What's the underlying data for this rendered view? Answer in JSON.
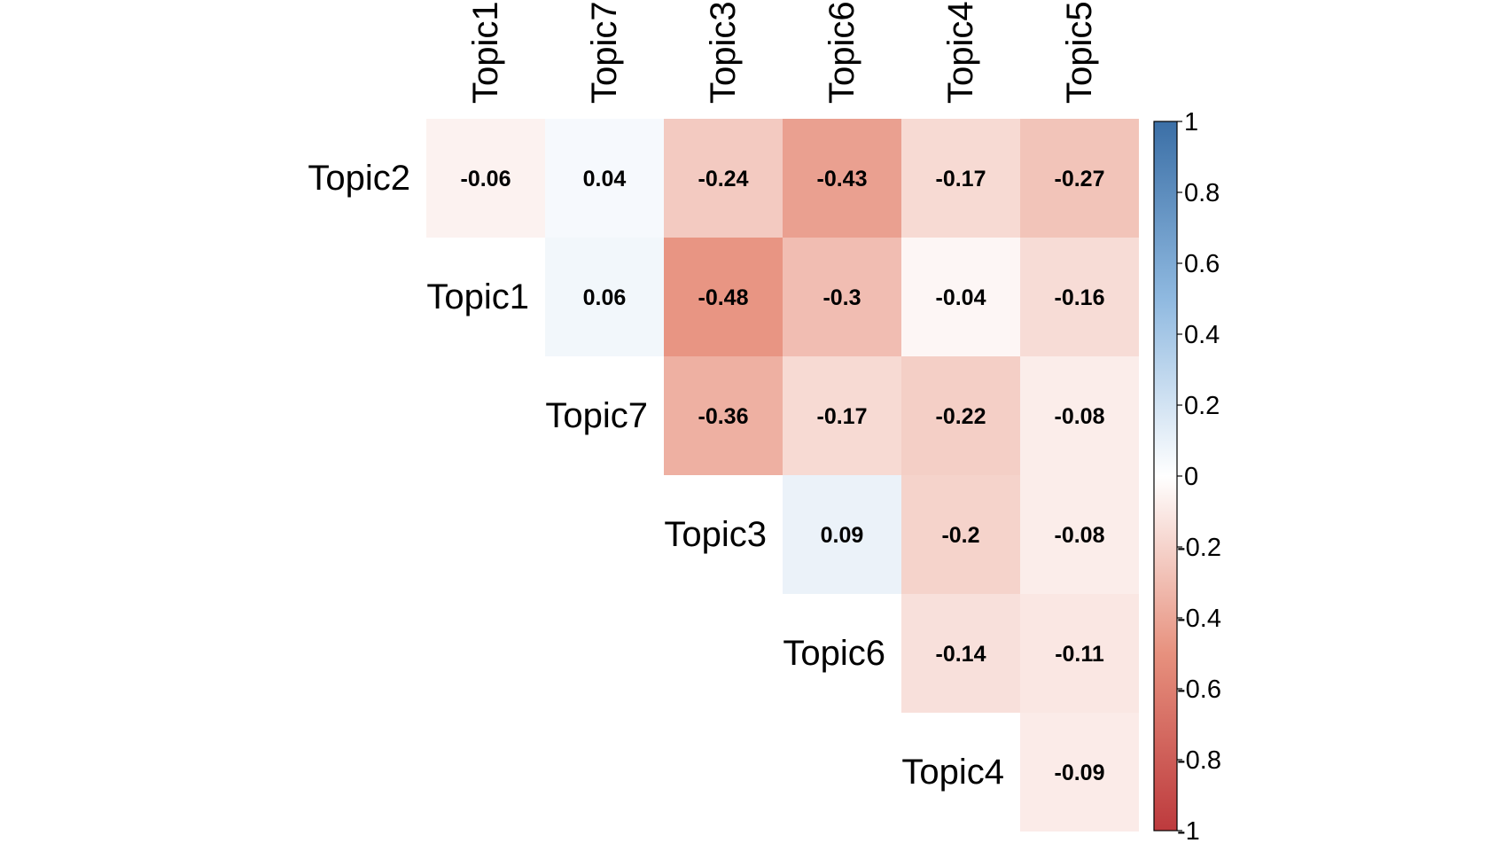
{
  "chart_data": {
    "type": "heatmap",
    "title": "",
    "column_labels": [
      "Topic1",
      "Topic7",
      "Topic3",
      "Topic6",
      "Topic4",
      "Topic5"
    ],
    "row_labels": [
      "Topic2",
      "Topic1",
      "Topic7",
      "Topic3",
      "Topic6",
      "Topic4"
    ],
    "values": [
      [
        -0.06,
        0.04,
        -0.24,
        -0.43,
        -0.17,
        -0.27
      ],
      [
        null,
        0.06,
        -0.48,
        -0.3,
        -0.04,
        -0.16
      ],
      [
        null,
        null,
        -0.36,
        -0.17,
        -0.22,
        -0.08
      ],
      [
        null,
        null,
        null,
        0.09,
        -0.2,
        -0.08
      ],
      [
        null,
        null,
        null,
        null,
        -0.14,
        -0.11
      ],
      [
        null,
        null,
        null,
        null,
        null,
        -0.09
      ]
    ],
    "value_labels": [
      [
        "-0.06",
        "0.04",
        "-0.24",
        "-0.43",
        "-0.17",
        "-0.27"
      ],
      [
        null,
        "0.06",
        "-0.48",
        "-0.3",
        "-0.04",
        "-0.16"
      ],
      [
        null,
        null,
        "-0.36",
        "-0.17",
        "-0.22",
        "-0.08"
      ],
      [
        null,
        null,
        null,
        "0.09",
        "-0.2",
        "-0.08"
      ],
      [
        null,
        null,
        null,
        null,
        "-0.14",
        "-0.11"
      ],
      [
        null,
        null,
        null,
        null,
        null,
        "-0.09"
      ]
    ],
    "shape": "upper-triangle",
    "color_scale": {
      "min": -1,
      "max": 1,
      "stops": [
        {
          "value": -1,
          "color": "#BD3A3D"
        },
        {
          "value": -0.5,
          "color": "#E7917E"
        },
        {
          "value": 0,
          "color": "#FFFFFF"
        },
        {
          "value": 0.5,
          "color": "#8FB9E0"
        },
        {
          "value": 1,
          "color": "#3B6FA6"
        }
      ],
      "ticks": [
        "1",
        "0.8",
        "0.6",
        "0.4",
        "0.2",
        "0",
        "-0.2",
        "-0.4",
        "-0.6",
        "-0.8",
        "-1"
      ]
    },
    "legend_position": "right"
  }
}
